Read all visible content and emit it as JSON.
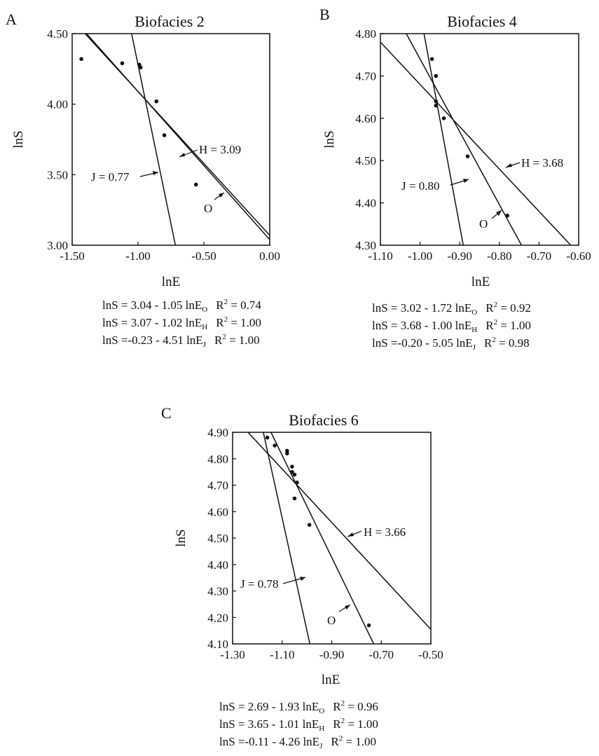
{
  "chart_data": [
    {
      "type": "scatter",
      "panel": "A",
      "title": "Biofacies 2",
      "xlabel": "lnE",
      "ylabel": "lnS",
      "xlim": [
        -1.5,
        0.0
      ],
      "ylim": [
        3.0,
        4.5
      ],
      "xticks": [
        "-1.50",
        "-1.00",
        "-0.50",
        "0.00"
      ],
      "yticks": [
        "3.00",
        "3.50",
        "4.00",
        "4.50"
      ],
      "points": [
        {
          "x": -1.43,
          "y": 4.32
        },
        {
          "x": -1.12,
          "y": 4.29
        },
        {
          "x": -0.99,
          "y": 4.28
        },
        {
          "x": -0.98,
          "y": 4.26
        },
        {
          "x": -0.86,
          "y": 4.02
        },
        {
          "x": -0.8,
          "y": 3.78
        },
        {
          "x": -0.56,
          "y": 3.43
        }
      ],
      "lines": [
        {
          "name": "O",
          "intercept": 3.04,
          "slope": -1.05
        },
        {
          "name": "H",
          "intercept": 3.07,
          "slope": -1.02
        },
        {
          "name": "J",
          "intercept": -0.23,
          "slope": -4.51
        }
      ],
      "annotations": [
        {
          "text": "H = 3.09"
        },
        {
          "text": "J = 0.77"
        },
        {
          "text": "O"
        }
      ],
      "equations": [
        {
          "lhs": "lnS = 3.04 - 1.05 lnE",
          "sub": "O",
          "r2_label": "R",
          "r2_sup": "2",
          "r2_value": " = 0.74"
        },
        {
          "lhs": "lnS = 3.07 - 1.02 lnE",
          "sub": "H",
          "r2_label": "R",
          "r2_sup": "2",
          "r2_value": " = 1.00"
        },
        {
          "lhs": "lnS =-0.23 - 4.51 lnE",
          "sub": "J",
          "r2_label": "R",
          "r2_sup": "2",
          "r2_value": " = 1.00"
        }
      ]
    },
    {
      "type": "scatter",
      "panel": "B",
      "title": "Biofacies 4",
      "xlabel": "lnE",
      "ylabel": "lnS",
      "xlim": [
        -1.1,
        -0.6
      ],
      "ylim": [
        4.3,
        4.8
      ],
      "xticks": [
        "-1.10",
        "-1.00",
        "-0.90",
        "-0.80",
        "-0.70",
        "-0.60"
      ],
      "yticks": [
        "4.30",
        "4.40",
        "4.50",
        "4.60",
        "4.70",
        "4.80"
      ],
      "points": [
        {
          "x": -0.97,
          "y": 4.74
        },
        {
          "x": -0.96,
          "y": 4.7
        },
        {
          "x": -0.96,
          "y": 4.64
        },
        {
          "x": -0.96,
          "y": 4.63
        },
        {
          "x": -0.94,
          "y": 4.6
        },
        {
          "x": -0.88,
          "y": 4.51
        },
        {
          "x": -0.78,
          "y": 4.37
        }
      ],
      "lines": [
        {
          "name": "O",
          "intercept": 3.02,
          "slope": -1.72
        },
        {
          "name": "H",
          "intercept": 3.68,
          "slope": -1.0
        },
        {
          "name": "J",
          "intercept": -0.2,
          "slope": -5.05
        }
      ],
      "annotations": [
        {
          "text": "H = 3.68"
        },
        {
          "text": "J = 0.80"
        },
        {
          "text": "O"
        }
      ],
      "equations": [
        {
          "lhs": "lnS = 3.02 - 1.72 lnE",
          "sub": "O",
          "r2_label": "R",
          "r2_sup": "2",
          "r2_value": " = 0.92"
        },
        {
          "lhs": "lnS = 3.68 - 1.00 lnE",
          "sub": "H",
          "r2_label": "R",
          "r2_sup": "2",
          "r2_value": " = 1.00"
        },
        {
          "lhs": "lnS =-0.20 - 5.05 lnE",
          "sub": "J",
          "r2_label": "R",
          "r2_sup": "2",
          "r2_value": " = 0.98"
        }
      ]
    },
    {
      "type": "scatter",
      "panel": "C",
      "title": "Biofacies 6",
      "xlabel": "lnE",
      "ylabel": "lnS",
      "xlim": [
        -1.3,
        -0.5
      ],
      "ylim": [
        4.1,
        4.9
      ],
      "xticks": [
        "-1.30",
        "-1.10",
        "-0.90",
        "-0.70",
        "-0.50"
      ],
      "yticks": [
        "4.10",
        "4.20",
        "4.30",
        "4.40",
        "4.50",
        "4.60",
        "4.70",
        "4.80",
        "4.90"
      ],
      "points": [
        {
          "x": -1.16,
          "y": 4.88
        },
        {
          "x": -1.13,
          "y": 4.85
        },
        {
          "x": -1.08,
          "y": 4.83
        },
        {
          "x": -1.08,
          "y": 4.82
        },
        {
          "x": -1.06,
          "y": 4.77
        },
        {
          "x": -1.06,
          "y": 4.75
        },
        {
          "x": -1.05,
          "y": 4.74
        },
        {
          "x": -1.04,
          "y": 4.71
        },
        {
          "x": -1.05,
          "y": 4.65
        },
        {
          "x": -0.99,
          "y": 4.55
        },
        {
          "x": -0.75,
          "y": 4.17
        }
      ],
      "lines": [
        {
          "name": "O",
          "intercept": 2.69,
          "slope": -1.93
        },
        {
          "name": "H",
          "intercept": 3.65,
          "slope": -1.01
        },
        {
          "name": "J",
          "intercept": -0.11,
          "slope": -4.26
        }
      ],
      "annotations": [
        {
          "text": "H = 3.66"
        },
        {
          "text": "J = 0.78"
        },
        {
          "text": "O"
        }
      ],
      "equations": [
        {
          "lhs": "lnS = 2.69 - 1.93 lnE",
          "sub": "O",
          "r2_label": "R",
          "r2_sup": "2",
          "r2_value": " = 0.96"
        },
        {
          "lhs": "lnS = 3.65 - 1.01 lnE",
          "sub": "H",
          "r2_label": "R",
          "r2_sup": "2",
          "r2_value": " = 1.00"
        },
        {
          "lhs": "lnS =-0.11 - 4.26 lnE",
          "sub": "J",
          "r2_label": "R",
          "r2_sup": "2",
          "r2_value": " = 1.00"
        }
      ]
    }
  ]
}
